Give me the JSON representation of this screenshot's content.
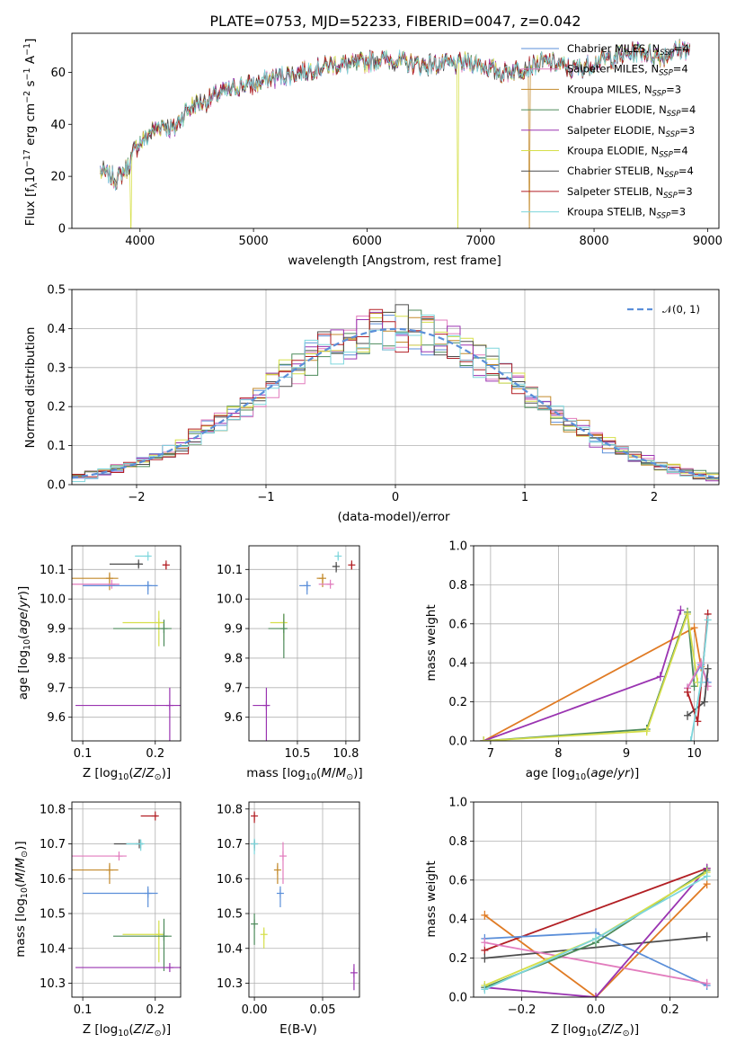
{
  "colors": {
    "Chabrier MILES": "#5b8fd9",
    "Salpeter MILES": "#e27cbd",
    "Kroupa MILES": "#c38a2c",
    "Chabrier ELODIE": "#4c8a5a",
    "Salpeter ELODIE": "#9a34b1",
    "Kroupa ELODIE": "#d6df4a",
    "Chabrier STELIB": "#4d4d4d",
    "Salpeter STELIB": "#b21f24",
    "Kroupa STELIB": "#7dd6dc",
    "orange": "#e07b24",
    "normal": "#5b8fd9"
  },
  "chart_data": [
    {
      "id": "spectrum",
      "type": "line",
      "title": "PLATE=0753, MJD=52233, FIBERID=0047, z=0.042",
      "xlabel": "wavelength [Angstrom, rest frame]",
      "ylabel": "Flux [f$_\\lambda$10$^{-17}$ erg cm$^{-2}$ s$^{-1}$ A$^{-1}$]",
      "ylabel_parts": [
        "Flux [f",
        "λ",
        "10",
        "−17",
        " erg cm",
        "−2",
        " s",
        "−1",
        " A",
        "−1",
        "]"
      ],
      "xlim": [
        3400,
        9100
      ],
      "ylim": [
        0,
        75
      ],
      "xticks": [
        4000,
        5000,
        6000,
        7000,
        8000,
        9000
      ],
      "yticks": [
        0,
        20,
        40,
        60
      ],
      "continuum": [
        [
          3650,
          22
        ],
        [
          3800,
          19
        ],
        [
          3900,
          24
        ],
        [
          3950,
          30
        ],
        [
          4000,
          33
        ],
        [
          4100,
          37
        ],
        [
          4200,
          40
        ],
        [
          4300,
          38
        ],
        [
          4400,
          45
        ],
        [
          4500,
          48
        ],
        [
          4600,
          49
        ],
        [
          4700,
          52
        ],
        [
          4800,
          53
        ],
        [
          4900,
          55
        ],
        [
          5000,
          55
        ],
        [
          5100,
          57
        ],
        [
          5200,
          58
        ],
        [
          5300,
          59
        ],
        [
          5400,
          60
        ],
        [
          5500,
          61
        ],
        [
          5600,
          62
        ],
        [
          5700,
          63
        ],
        [
          5800,
          63
        ],
        [
          5900,
          63
        ],
        [
          6000,
          64
        ],
        [
          6100,
          65
        ],
        [
          6200,
          65
        ],
        [
          6300,
          64
        ],
        [
          6400,
          63
        ],
        [
          6500,
          63
        ],
        [
          6600,
          63
        ],
        [
          6700,
          63
        ],
        [
          6800,
          63
        ],
        [
          6900,
          64
        ],
        [
          7000,
          63
        ],
        [
          7100,
          61
        ],
        [
          7200,
          60
        ],
        [
          7300,
          61
        ],
        [
          7400,
          62
        ],
        [
          7500,
          63
        ],
        [
          7600,
          64
        ],
        [
          7700,
          63
        ],
        [
          7800,
          61
        ],
        [
          7900,
          62
        ],
        [
          8000,
          64
        ],
        [
          8100,
          65
        ],
        [
          8200,
          66
        ],
        [
          8300,
          67
        ],
        [
          8400,
          68
        ],
        [
          8500,
          67
        ],
        [
          8600,
          66
        ],
        [
          8700,
          68
        ],
        [
          8800,
          69
        ],
        [
          8850,
          69
        ]
      ],
      "dropouts": [
        {
          "series": "Kroupa ELODIE",
          "x": 3920
        },
        {
          "series": "Kroupa ELODIE",
          "x": 6800
        },
        {
          "series": "Kroupa MILES",
          "x": 7430
        }
      ],
      "legend_labels": [
        "Chabrier MILES",
        "Salpeter MILES",
        "Kroupa MILES",
        "Chabrier ELODIE",
        "Salpeter ELODIE",
        "Kroupa ELODIE",
        "Chabrier STELIB",
        "Salpeter STELIB",
        "Kroupa STELIB"
      ],
      "legend_nssp": [
        4,
        4,
        3,
        4,
        3,
        4,
        4,
        3,
        3
      ],
      "legend_nssp_prefix": "N",
      "legend_nssp_sub": "SSP"
    },
    {
      "id": "residuals",
      "type": "line",
      "xlabel": "(data-model)/error",
      "ylabel": "Normed distribution",
      "xlim": [
        -2.5,
        2.5
      ],
      "ylim": [
        0,
        0.5
      ],
      "xticks": [
        -2,
        -1,
        0,
        1,
        2
      ],
      "yticks": [
        0.0,
        0.1,
        0.2,
        0.3,
        0.4,
        0.5
      ],
      "bin_width": 0.1,
      "legend": "𝒩(0, 1)"
    },
    {
      "id": "age_vs_Z",
      "type": "scatter",
      "xlabel": "Z [log10(Z/Z⊙)]",
      "ylabel": "age  [log10(age/yr)]",
      "xlim": [
        0.085,
        0.235
      ],
      "ylim": [
        9.52,
        10.18
      ],
      "xticks": [
        0.1,
        0.2
      ],
      "yticks": [
        9.6,
        9.7,
        9.8,
        9.9,
        10.0,
        10.1
      ],
      "points": [
        {
          "s": "Kroupa STELIB",
          "x": 0.19,
          "y": 10.145,
          "xe": 0.018,
          "ye": 0.0
        },
        {
          "s": "Chabrier STELIB",
          "x": 0.177,
          "y": 10.118,
          "xe": 0.04,
          "ye": 0.01
        },
        {
          "s": "Salpeter STELIB",
          "x": 0.215,
          "y": 10.115,
          "xe": 0.005,
          "ye": 0.015
        },
        {
          "s": "Kroupa MILES",
          "x": 0.137,
          "y": 10.07,
          "xe": 0.08,
          "ye": 0.04
        },
        {
          "s": "Salpeter MILES",
          "x": 0.14,
          "y": 10.05,
          "xe": 0.07,
          "ye": 0.0
        },
        {
          "s": "Chabrier MILES",
          "x": 0.19,
          "y": 10.045,
          "xe": 0.09,
          "ye": 0.03
        },
        {
          "s": "Kroupa ELODIE",
          "x": 0.205,
          "y": 9.92,
          "xe": 0.05,
          "ye": 0.08
        },
        {
          "s": "Chabrier ELODIE",
          "x": 0.212,
          "y": 9.9,
          "xe": 0.07,
          "ye": 0.06
        },
        {
          "s": "Salpeter ELODIE",
          "x": 0.22,
          "y": 9.64,
          "xe": 0.13,
          "ye": 0.12
        }
      ]
    },
    {
      "id": "age_vs_mass",
      "type": "scatter",
      "xlabel": "mass [log10(M/M⊙)]",
      "xlim": [
        10.25,
        10.82
      ],
      "ylim": [
        9.52,
        10.18
      ],
      "xticks": [
        10.5,
        10.75
      ],
      "yticks": [
        9.6,
        9.7,
        9.8,
        9.9,
        10.0,
        10.1
      ],
      "points": [
        {
          "s": "Kroupa STELIB",
          "x": 10.71,
          "y": 10.145,
          "xe": 0.0,
          "ye": 0.01
        },
        {
          "s": "Chabrier STELIB",
          "x": 10.7,
          "y": 10.11,
          "xe": 0.02,
          "ye": 0.02
        },
        {
          "s": "Salpeter STELIB",
          "x": 10.78,
          "y": 10.115,
          "xe": 0.0,
          "ye": 0.015
        },
        {
          "s": "Kroupa MILES",
          "x": 10.63,
          "y": 10.07,
          "xe": 0.03,
          "ye": 0.03
        },
        {
          "s": "Salpeter MILES",
          "x": 10.67,
          "y": 10.05,
          "xe": 0.06,
          "ye": 0.0
        },
        {
          "s": "Chabrier MILES",
          "x": 10.55,
          "y": 10.045,
          "xe": 0.04,
          "ye": 0.03
        },
        {
          "s": "Kroupa ELODIE",
          "x": 10.43,
          "y": 9.92,
          "xe": 0.07,
          "ye": 0.06
        },
        {
          "s": "Chabrier ELODIE",
          "x": 10.43,
          "y": 9.9,
          "xe": 0.08,
          "ye": 0.1
        },
        {
          "s": "Salpeter ELODIE",
          "x": 10.34,
          "y": 9.64,
          "xe": 0.07,
          "ye": 0.12
        }
      ]
    },
    {
      "id": "weight_vs_age",
      "type": "line",
      "xlabel": "age  [log10(age/yr)]",
      "ylabel": "mass weight",
      "xlim": [
        6.75,
        10.35
      ],
      "ylim": [
        0,
        1
      ],
      "xticks": [
        7,
        8,
        9,
        10
      ],
      "yticks": [
        0.0,
        0.2,
        0.4,
        0.6,
        0.8,
        1.0
      ],
      "series": [
        {
          "s": "Kroupa MILES",
          "points": [
            [
              6.9,
              0.0
            ],
            [
              10.0,
              0.58
            ],
            [
              10.1,
              0.38
            ]
          ],
          "color_key": "orange"
        },
        {
          "s": "Salpeter ELODIE",
          "points": [
            [
              6.9,
              0.0
            ],
            [
              9.5,
              0.33
            ],
            [
              9.8,
              0.67
            ]
          ]
        },
        {
          "s": "Chabrier ELODIE",
          "points": [
            [
              6.9,
              0.0
            ],
            [
              9.3,
              0.06
            ],
            [
              9.9,
              0.66
            ],
            [
              10.0,
              0.28
            ]
          ]
        },
        {
          "s": "Kroupa ELODIE",
          "points": [
            [
              6.9,
              0.0
            ],
            [
              9.3,
              0.05
            ],
            [
              9.9,
              0.65
            ],
            [
              10.05,
              0.3
            ]
          ]
        },
        {
          "s": "Chabrier MILES",
          "points": [
            [
              9.9,
              0.27
            ],
            [
              10.1,
              0.39
            ],
            [
              10.2,
              0.3
            ]
          ]
        },
        {
          "s": "Salpeter MILES",
          "points": [
            [
              9.9,
              0.27
            ],
            [
              10.1,
              0.4
            ],
            [
              10.2,
              0.28
            ]
          ]
        },
        {
          "s": "Chabrier STELIB",
          "points": [
            [
              9.9,
              0.13
            ],
            [
              10.15,
              0.2
            ],
            [
              10.2,
              0.37
            ]
          ]
        },
        {
          "s": "Salpeter STELIB",
          "points": [
            [
              9.9,
              0.25
            ],
            [
              10.05,
              0.1
            ],
            [
              10.2,
              0.65
            ]
          ]
        },
        {
          "s": "Kroupa STELIB",
          "points": [
            [
              9.95,
              0.0
            ],
            [
              10.1,
              0.3
            ],
            [
              10.2,
              0.62
            ]
          ]
        }
      ]
    },
    {
      "id": "mass_vs_Z",
      "type": "scatter",
      "xlabel": "Z [log10(Z/Z⊙)]",
      "ylabel": "mass [log10(M/M⊙)]",
      "xlim": [
        0.085,
        0.235
      ],
      "ylim": [
        10.26,
        10.82
      ],
      "xticks": [
        0.1,
        0.2
      ],
      "yticks": [
        10.3,
        10.4,
        10.5,
        10.6,
        10.7,
        10.8
      ],
      "points": [
        {
          "s": "Salpeter STELIB",
          "x": 0.2,
          "y": 10.78,
          "xe": 0.02,
          "ye": 0.0
        },
        {
          "s": "Chabrier STELIB",
          "x": 0.178,
          "y": 10.7,
          "xe": 0.035,
          "ye": 0.0
        },
        {
          "s": "Kroupa STELIB",
          "x": 0.18,
          "y": 10.7,
          "xe": 0.02,
          "ye": 0.02
        },
        {
          "s": "Salpeter MILES",
          "x": 0.15,
          "y": 10.665,
          "xe": 0.07,
          "ye": 0.0
        },
        {
          "s": "Kroupa MILES",
          "x": 0.137,
          "y": 10.625,
          "xe": 0.08,
          "ye": 0.04
        },
        {
          "s": "Chabrier MILES",
          "x": 0.19,
          "y": 10.558,
          "xe": 0.09,
          "ye": 0.04
        },
        {
          "s": "Kroupa ELODIE",
          "x": 0.205,
          "y": 10.44,
          "xe": 0.05,
          "ye": 0.08
        },
        {
          "s": "Chabrier ELODIE",
          "x": 0.212,
          "y": 10.435,
          "xe": 0.07,
          "ye": 0.1
        },
        {
          "s": "Salpeter ELODIE",
          "x": 0.22,
          "y": 10.345,
          "xe": 0.13,
          "ye": 0.0
        }
      ]
    },
    {
      "id": "mass_vs_ebv",
      "type": "scatter",
      "xlabel": "E(B-V)",
      "xlim": [
        -0.004,
        0.077
      ],
      "ylim": [
        10.26,
        10.82
      ],
      "xticks": [
        0.0,
        0.05
      ],
      "yticks": [
        10.3,
        10.4,
        10.5,
        10.6,
        10.7,
        10.8
      ],
      "points": [
        {
          "s": "Salpeter STELIB",
          "x": 0.0,
          "y": 10.78,
          "xe": 0.0,
          "ye": 0.02
        },
        {
          "s": "Chabrier STELIB",
          "x": 0.0,
          "y": 10.7,
          "xe": 0.0,
          "ye": 0.02
        },
        {
          "s": "Kroupa STELIB",
          "x": 0.0,
          "y": 10.7,
          "xe": 0.0,
          "ye": 0.03
        },
        {
          "s": "Salpeter MILES",
          "x": 0.021,
          "y": 10.665,
          "xe": 0.0,
          "ye": 0.08
        },
        {
          "s": "Kroupa MILES",
          "x": 0.017,
          "y": 10.625,
          "xe": 0.0,
          "ye": 0.04
        },
        {
          "s": "Chabrier MILES",
          "x": 0.019,
          "y": 10.558,
          "xe": 0.0,
          "ye": 0.04
        },
        {
          "s": "Kroupa ELODIE",
          "x": 0.007,
          "y": 10.44,
          "xe": 0.0,
          "ye": 0.04
        },
        {
          "s": "Chabrier ELODIE",
          "x": 0.0,
          "y": 10.47,
          "xe": 0.0,
          "ye": 0.06
        },
        {
          "s": "Salpeter ELODIE",
          "x": 0.073,
          "y": 10.33,
          "xe": 0.0,
          "ye": 0.05
        }
      ]
    },
    {
      "id": "weight_vs_Z",
      "type": "line",
      "xlabel": "Z [log10(Z/Z⊙)]",
      "ylabel": "mass weight",
      "xlim": [
        -0.33,
        0.33
      ],
      "ylim": [
        0,
        1
      ],
      "xticks": [
        -0.2,
        0.0,
        0.2
      ],
      "yticks": [
        0.0,
        0.2,
        0.4,
        0.6,
        0.8,
        1.0
      ],
      "series": [
        {
          "s": "Kroupa MILES",
          "points": [
            [
              -0.3,
              0.42
            ],
            [
              0.0,
              0.0
            ],
            [
              0.3,
              0.58
            ]
          ],
          "color_key": "orange"
        },
        {
          "s": "Salpeter STELIB",
          "points": [
            [
              -0.3,
              0.24
            ],
            [
              0.3,
              0.66
            ]
          ]
        },
        {
          "s": "Chabrier STELIB",
          "points": [
            [
              -0.3,
              0.2
            ],
            [
              0.3,
              0.31
            ]
          ]
        },
        {
          "s": "Chabrier MILES",
          "points": [
            [
              -0.3,
              0.3
            ],
            [
              0.0,
              0.33
            ],
            [
              0.3,
              0.06
            ]
          ]
        },
        {
          "s": "Salpeter MILES",
          "points": [
            [
              -0.3,
              0.28
            ],
            [
              0.3,
              0.07
            ]
          ]
        },
        {
          "s": "Salpeter ELODIE",
          "points": [
            [
              -0.3,
              0.05
            ],
            [
              0.0,
              0.0
            ],
            [
              0.3,
              0.66
            ]
          ]
        },
        {
          "s": "Chabrier ELODIE",
          "points": [
            [
              -0.3,
              0.05
            ],
            [
              0.0,
              0.28
            ],
            [
              0.3,
              0.65
            ]
          ]
        },
        {
          "s": "Kroupa ELODIE",
          "points": [
            [
              -0.3,
              0.06
            ],
            [
              0.0,
              0.3
            ],
            [
              0.3,
              0.64
            ]
          ]
        },
        {
          "s": "Kroupa STELIB",
          "points": [
            [
              -0.3,
              0.04
            ],
            [
              0.0,
              0.3
            ],
            [
              0.3,
              0.62
            ]
          ]
        }
      ]
    }
  ]
}
